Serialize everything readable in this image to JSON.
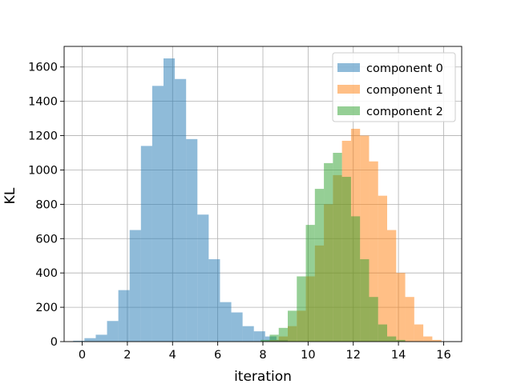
{
  "chart_data": {
    "type": "histogram",
    "xlabel": "iteration",
    "ylabel": "KL",
    "xlim": [
      -0.8,
      16.8
    ],
    "ylim": [
      0,
      1720
    ],
    "xticks": [
      0,
      2,
      4,
      6,
      8,
      10,
      12,
      14,
      16
    ],
    "yticks": [
      0,
      200,
      400,
      600,
      800,
      1000,
      1200,
      1400,
      1600
    ],
    "grid": true,
    "legend_position": "top-right",
    "series": [
      {
        "name": "component 0",
        "color": "#1f77b4",
        "alpha": 0.5,
        "bins": [
          [
            -0.4,
            0.1,
            5
          ],
          [
            0.1,
            0.6,
            20
          ],
          [
            0.6,
            1.1,
            40
          ],
          [
            1.1,
            1.6,
            120
          ],
          [
            1.6,
            2.1,
            300
          ],
          [
            2.1,
            2.6,
            650
          ],
          [
            2.6,
            3.1,
            1140
          ],
          [
            3.1,
            3.6,
            1490
          ],
          [
            3.6,
            4.1,
            1650
          ],
          [
            4.1,
            4.6,
            1530
          ],
          [
            4.6,
            5.1,
            1180
          ],
          [
            5.1,
            5.6,
            740
          ],
          [
            5.6,
            6.1,
            480
          ],
          [
            6.1,
            6.6,
            230
          ],
          [
            6.6,
            7.1,
            170
          ],
          [
            7.1,
            7.6,
            90
          ],
          [
            7.6,
            8.1,
            60
          ],
          [
            8.1,
            8.6,
            30
          ],
          [
            8.6,
            9.1,
            10
          ]
        ]
      },
      {
        "name": "component 1",
        "color": "#ff7f0e",
        "alpha": 0.5,
        "bins": [
          [
            7.9,
            8.3,
            3
          ],
          [
            8.3,
            8.7,
            8
          ],
          [
            8.7,
            9.1,
            30
          ],
          [
            9.1,
            9.5,
            90
          ],
          [
            9.5,
            9.9,
            180
          ],
          [
            9.9,
            10.3,
            380
          ],
          [
            10.3,
            10.7,
            560
          ],
          [
            10.7,
            11.1,
            800
          ],
          [
            11.1,
            11.5,
            970
          ],
          [
            11.5,
            11.9,
            1170
          ],
          [
            11.9,
            12.3,
            1240
          ],
          [
            12.3,
            12.7,
            1200
          ],
          [
            12.7,
            13.1,
            1050
          ],
          [
            13.1,
            13.5,
            850
          ],
          [
            13.5,
            13.9,
            650
          ],
          [
            13.9,
            14.3,
            400
          ],
          [
            14.3,
            14.7,
            260
          ],
          [
            14.7,
            15.1,
            100
          ],
          [
            15.1,
            15.5,
            30
          ],
          [
            15.5,
            15.9,
            10
          ]
        ]
      },
      {
        "name": "component 2",
        "color": "#2ca02c",
        "alpha": 0.5,
        "bins": [
          [
            7.9,
            8.3,
            10
          ],
          [
            8.3,
            8.7,
            40
          ],
          [
            8.7,
            9.1,
            80
          ],
          [
            9.1,
            9.5,
            180
          ],
          [
            9.5,
            9.9,
            380
          ],
          [
            9.9,
            10.3,
            680
          ],
          [
            10.3,
            10.7,
            890
          ],
          [
            10.7,
            11.1,
            1040
          ],
          [
            11.1,
            11.5,
            1100
          ],
          [
            11.5,
            11.9,
            960
          ],
          [
            11.9,
            12.3,
            730
          ],
          [
            12.3,
            12.7,
            480
          ],
          [
            12.7,
            13.1,
            260
          ],
          [
            13.1,
            13.5,
            100
          ],
          [
            13.5,
            13.9,
            30
          ],
          [
            13.9,
            14.3,
            10
          ]
        ]
      }
    ]
  }
}
